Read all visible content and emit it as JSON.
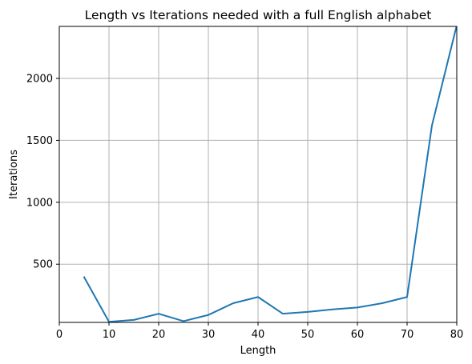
{
  "chart_data": {
    "type": "line",
    "title": "Length vs Iterations needed with a full English alphabet",
    "xlabel": "Length",
    "ylabel": "Iterations",
    "xlim": [
      0,
      80
    ],
    "ylim": [
      30,
      2420
    ],
    "x_ticks": [
      0,
      10,
      20,
      30,
      40,
      50,
      60,
      70,
      80
    ],
    "y_ticks": [
      500,
      1000,
      1500,
      2000
    ],
    "grid": true,
    "series": [
      {
        "color": "#1f77b4",
        "x": [
          5,
          10,
          15,
          20,
          25,
          30,
          35,
          40,
          45,
          50,
          55,
          60,
          65,
          70,
          75,
          80
        ],
        "y": [
          395,
          35,
          50,
          100,
          40,
          90,
          185,
          235,
          100,
          115,
          135,
          150,
          185,
          235,
          1620,
          2430
        ]
      }
    ]
  }
}
